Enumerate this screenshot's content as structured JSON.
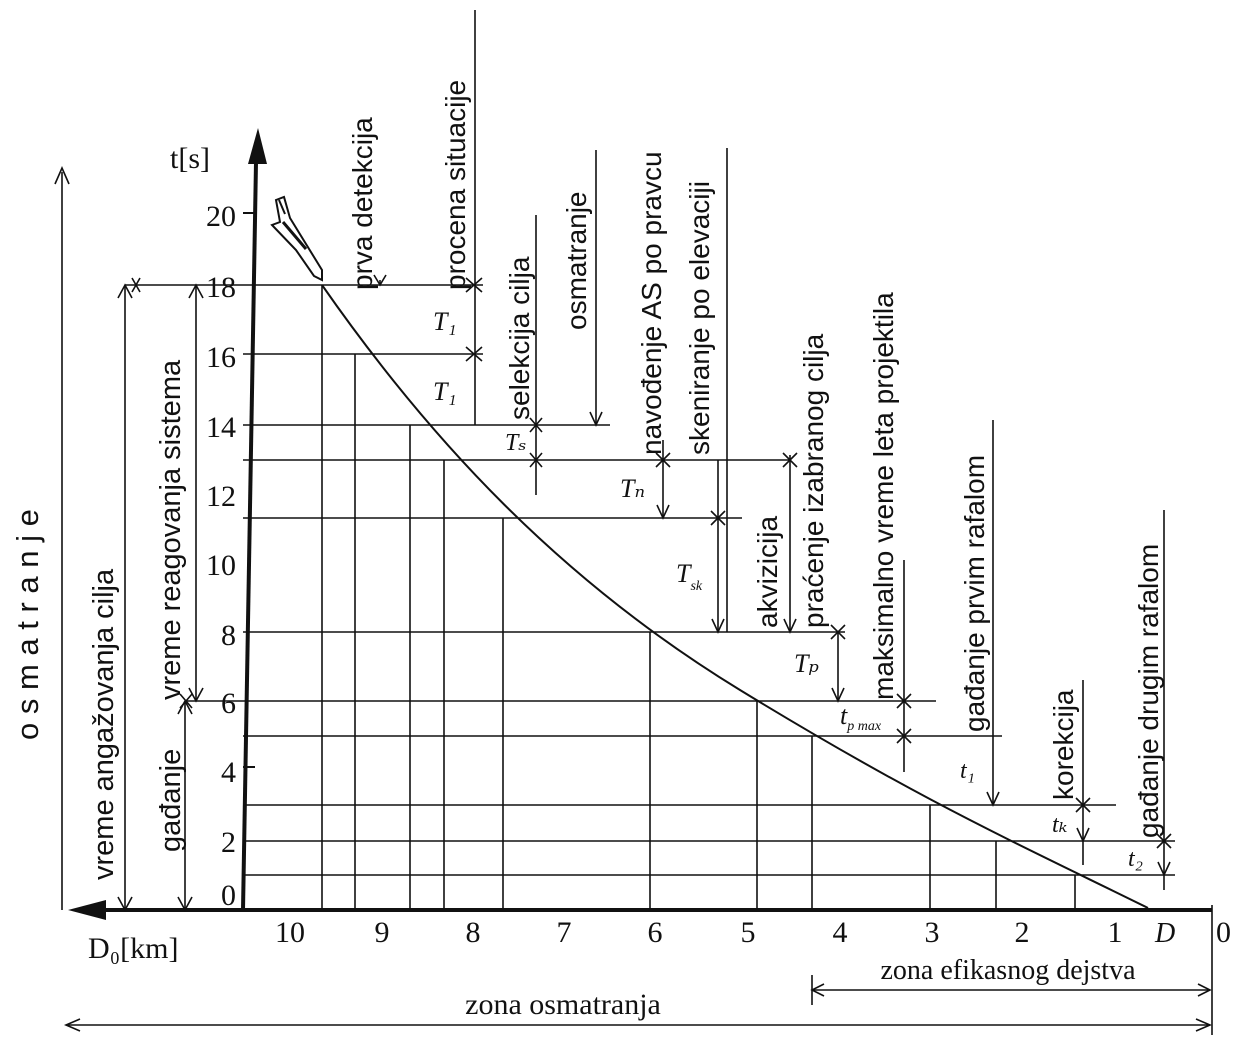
{
  "axes": {
    "y_title": "t[s]",
    "x_title": "D₀[km]",
    "x_end_label": "0",
    "y_ticks": [
      "20",
      "18",
      "16",
      "14",
      "12",
      "10",
      "8",
      "6",
      "4",
      "2",
      "0"
    ],
    "x_ticks": [
      "10",
      "9",
      "8",
      "7",
      "6",
      "5",
      "4",
      "3",
      "2",
      "1"
    ],
    "d_label": "D"
  },
  "vertical_labels": {
    "osmatranje_left": "o s m a t r a n j e",
    "vreme_angazovanja": "vreme angažovanja cilja",
    "vreme_reagovanja": "vreme reagovanja sistema",
    "gadjanje": "gađanje",
    "prva_detekcija": "prva detekcija",
    "procena_situacije": "procena situacije",
    "selekcija_cilja": "selekcija cilja",
    "osmatranje": "osmatranje",
    "navodjenje": "navođenje AS po pravcu",
    "skeniranje": "skeniranje po elevaciji",
    "akvizicija": "akvizicija",
    "pracenje": "praćenje izabranog cilja",
    "maksimalno_vreme": "maksimalno vreme leta projektila",
    "gadjanje_prvim": "gađanje  prvim rafalom",
    "korekcija": "korekcija",
    "gadjanje_drugim": "gađanje  drugim rafalom"
  },
  "interval_labels": {
    "t1a": "T₁",
    "t1b": "T₁",
    "ts": "Tₛ",
    "tn": "Tₙ",
    "tsk_main": "T",
    "tsk_sub": "sk",
    "tp": "Tₚ",
    "tpmax_main": "t",
    "tpmax_sub": "p max",
    "t1": "t₁",
    "tk": "tₖ",
    "t2": "t₂"
  },
  "zones": {
    "efikasnog": "zona efikasnog dejstva",
    "osmatranja": "zona osmatranja"
  },
  "icons": {
    "aircraft": "aircraft-icon"
  }
}
